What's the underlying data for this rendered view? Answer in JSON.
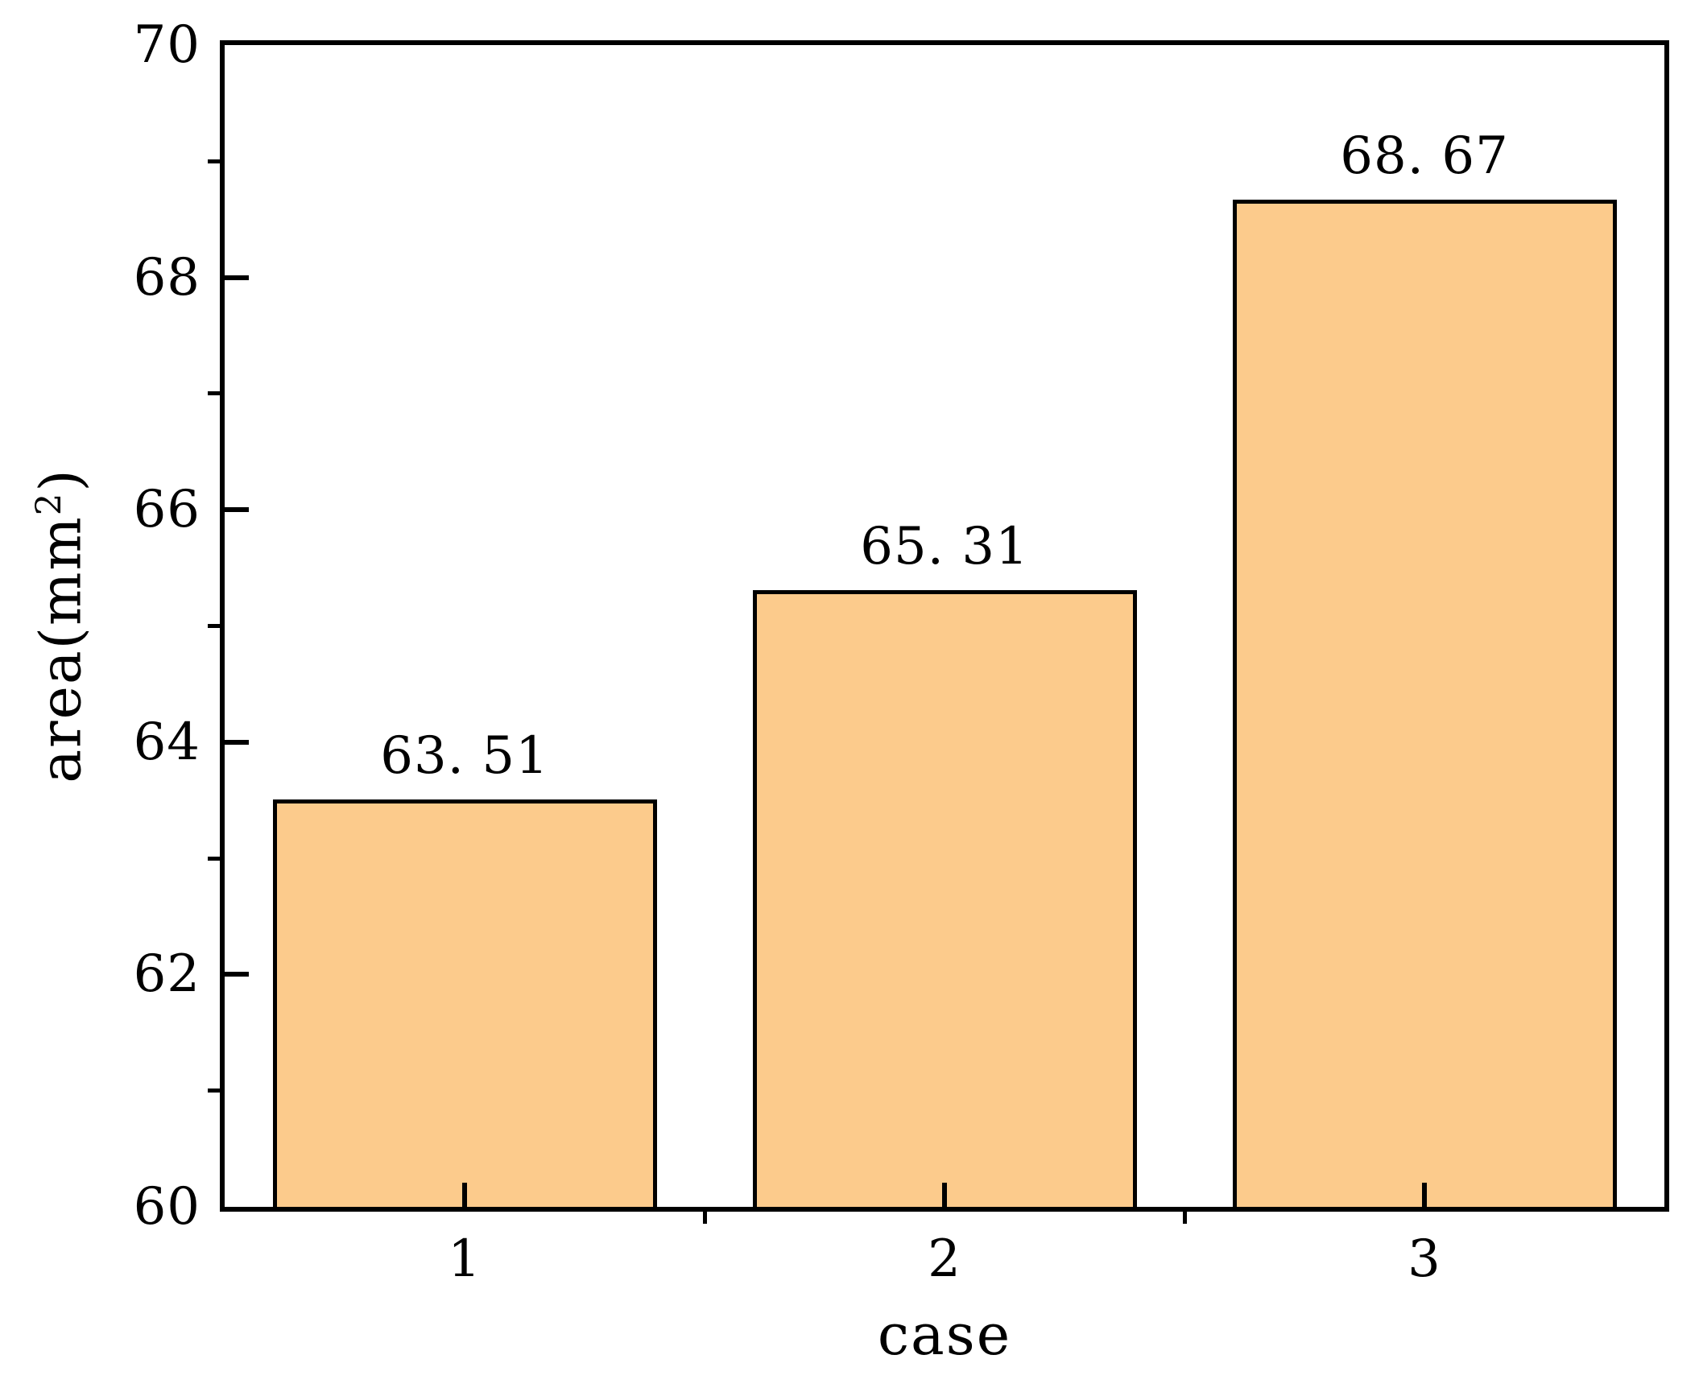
{
  "chart_data": {
    "type": "bar",
    "title": "",
    "categories": [
      "1",
      "2",
      "3"
    ],
    "values": [
      63.51,
      65.31,
      68.67
    ],
    "bar_value_labels": [
      "63. 51",
      "65. 31",
      "68. 67"
    ],
    "xlabel": "case",
    "ylabel": "area(mm²)",
    "ylabel_parts": {
      "prefix": "area(mm",
      "superscript": "2",
      "suffix": ")"
    },
    "ylim": [
      60,
      70
    ],
    "y_major_ticks": [
      60,
      62,
      64,
      66,
      68,
      70
    ],
    "y_minor_ticks": [
      61,
      63,
      65,
      67,
      69
    ],
    "y_tick_labels": [
      "60",
      "62",
      "64",
      "66",
      "68",
      "70"
    ],
    "x_tick_labels": [
      "1",
      "2",
      "3"
    ],
    "bar_width_fraction": 0.8,
    "grid": false,
    "legend": null,
    "colors": {
      "bar_fill": "#FCCB8C",
      "bar_border": "#000000",
      "axis": "#000000",
      "text": "#000000",
      "background": "#FFFFFF"
    }
  }
}
